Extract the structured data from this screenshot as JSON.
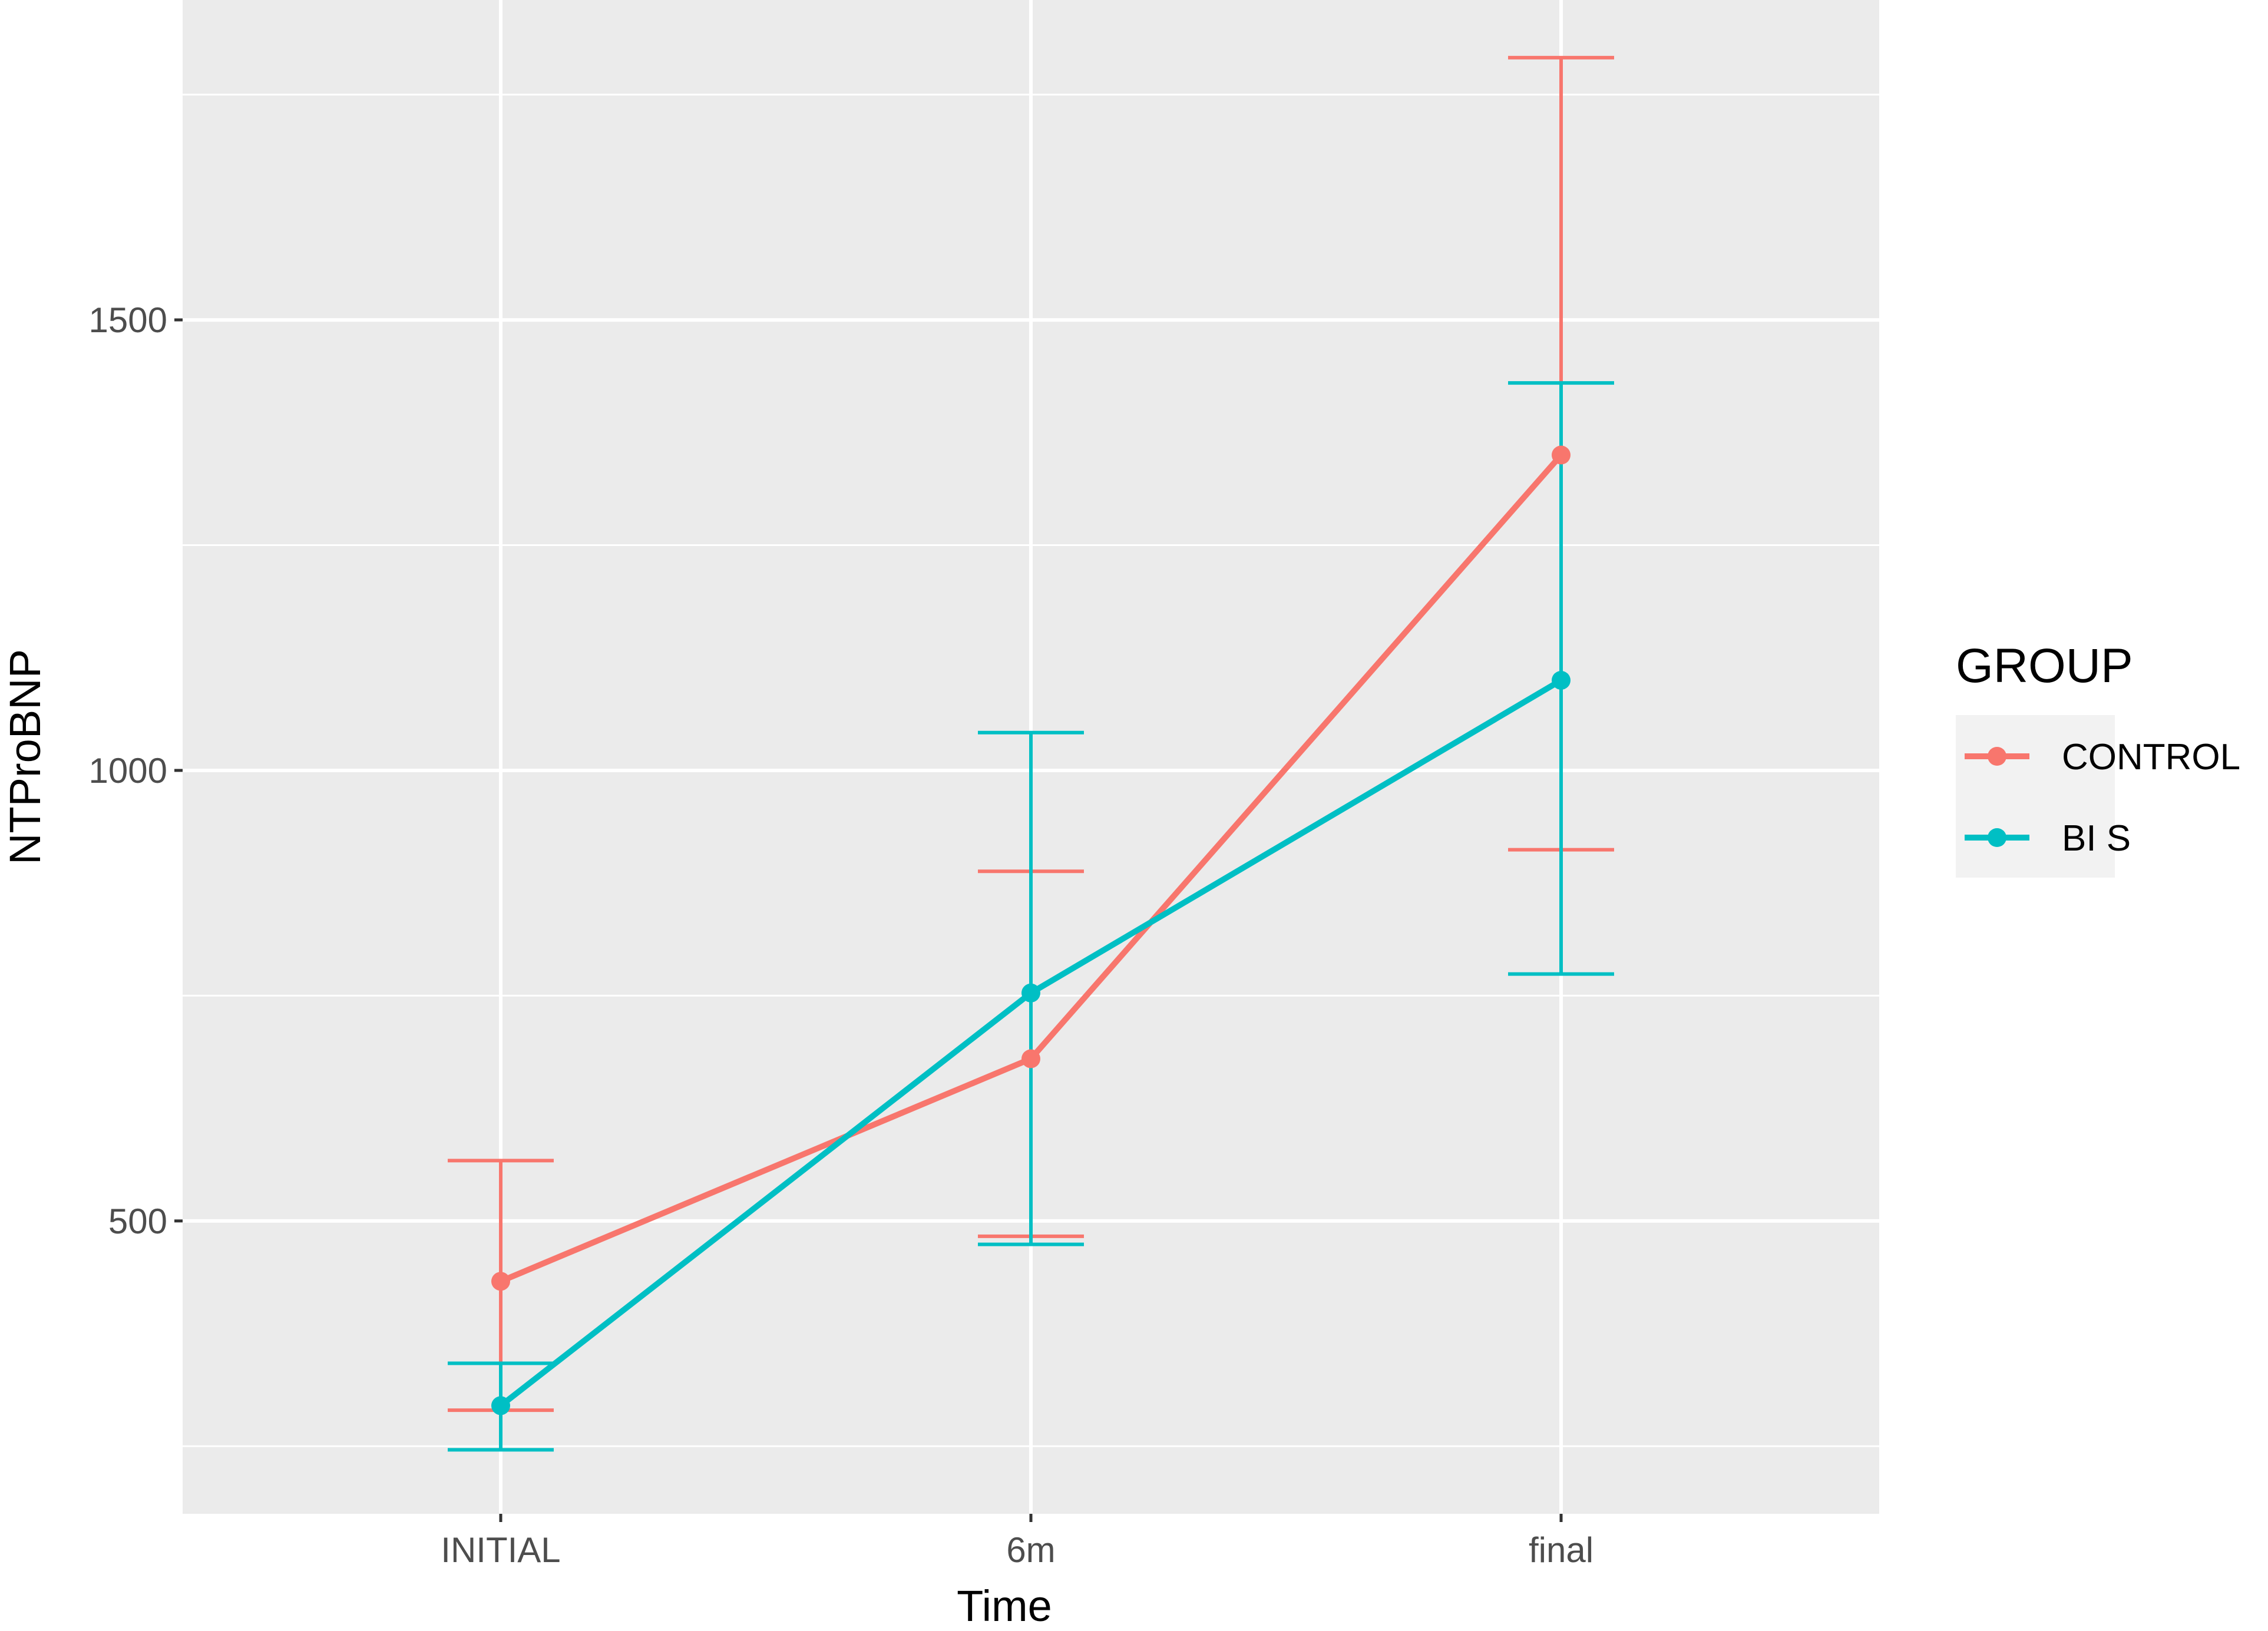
{
  "chart_data": {
    "type": "line",
    "title": "",
    "xlabel": "Time",
    "ylabel": "NTProBNP",
    "categories": [
      "INITIAL",
      "6m",
      "final"
    ],
    "ylim": [
      175,
      1855
    ],
    "yticks": [
      500,
      1000,
      1500
    ],
    "grid": true,
    "legend": {
      "title": "GROUP",
      "position": "right"
    },
    "series": [
      {
        "name": "CONTROL",
        "color": "#F8766D",
        "values": [
          433,
          680,
          1350
        ],
        "error_low": [
          290,
          483,
          912
        ],
        "error_high": [
          567,
          888,
          1791
        ]
      },
      {
        "name": "BI S",
        "color": "#00BFC4",
        "values": [
          295,
          753,
          1100
        ],
        "error_low": [
          246,
          474,
          774
        ],
        "error_high": [
          342,
          1042,
          1430
        ]
      }
    ]
  }
}
